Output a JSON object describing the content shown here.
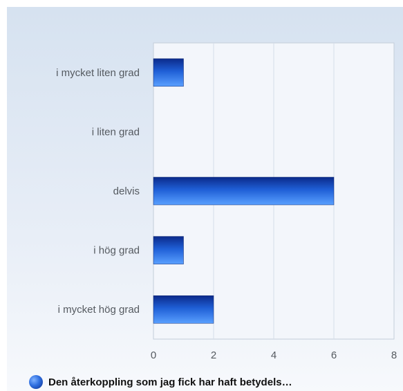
{
  "chart_data": {
    "type": "bar",
    "orientation": "horizontal",
    "categories": [
      "i mycket liten grad",
      "i liten grad",
      "delvis",
      "i hög grad",
      "i mycket hög grad"
    ],
    "series": [
      {
        "name": "Den återkoppling som jag fick har haft betydels…",
        "values": [
          1,
          0,
          6,
          1,
          2
        ]
      }
    ],
    "xlim": [
      0,
      8
    ],
    "xticks": [
      "0",
      "2",
      "4",
      "6",
      "8"
    ],
    "grid": true,
    "legend_position": "bottom-left",
    "colors": {
      "bar_dark": "#0b2a8a",
      "bar_mid": "#1f5fd6",
      "bar_light": "#5aa0ff",
      "grid": "#d5dde8",
      "axis": "#b9c3d0"
    }
  }
}
